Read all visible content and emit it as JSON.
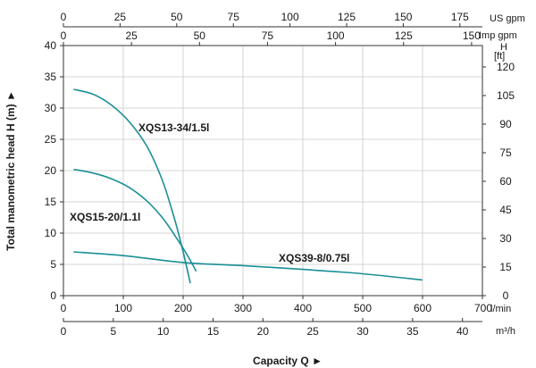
{
  "chart_data": {
    "type": "line",
    "grid": true,
    "colors": {
      "series": "#1a8f96",
      "grid": "#c8c8c8",
      "axis": "#333333"
    },
    "ylabel": "Total manometric head H (m) ►",
    "xlabel": "Capacity Q ►",
    "x_unit": "l/min",
    "y_right_unit_top": "H",
    "y_right_unit_bottom": "[ft]",
    "us_gpm_unit": "US gpm",
    "imp_gpm_unit": "Imp gpm",
    "m3h_unit": "m³/h",
    "xlim": [
      0,
      700
    ],
    "ylim": [
      0,
      40
    ],
    "x_ticks": [
      0,
      100,
      200,
      300,
      400,
      500,
      600,
      700
    ],
    "y_ticks": [
      0,
      5,
      10,
      15,
      20,
      25,
      30,
      35,
      40
    ],
    "y_right_ticks": [
      0,
      15,
      30,
      45,
      60,
      75,
      90,
      105,
      120
    ],
    "us_gpm_ticks": [
      0,
      25,
      50,
      75,
      100,
      125,
      150,
      175
    ],
    "imp_gpm_ticks": [
      0,
      25,
      50,
      75,
      100,
      125,
      150
    ],
    "m3h_ticks": [
      0,
      5,
      10,
      15,
      20,
      25,
      30,
      35,
      40
    ],
    "series": [
      {
        "name": "XQS13-34/1.5l",
        "x": [
          17,
          50,
          80,
          110,
          140,
          165,
          185,
          200,
          212
        ],
        "y": [
          33,
          32.2,
          30.5,
          27.8,
          23.8,
          18.5,
          12.5,
          7,
          2
        ]
      },
      {
        "name": "XQS15-20/1.1l",
        "x": [
          17,
          50,
          80,
          110,
          140,
          165,
          185,
          205,
          222
        ],
        "y": [
          20.2,
          19.6,
          18.7,
          17.3,
          15.1,
          12.5,
          9.8,
          6.8,
          3.9
        ]
      },
      {
        "name": "XQS39-8/0.75l",
        "x": [
          17,
          100,
          200,
          300,
          400,
          500,
          600
        ],
        "y": [
          7,
          6.4,
          5.3,
          4.8,
          4.2,
          3.5,
          2.5
        ]
      }
    ]
  }
}
